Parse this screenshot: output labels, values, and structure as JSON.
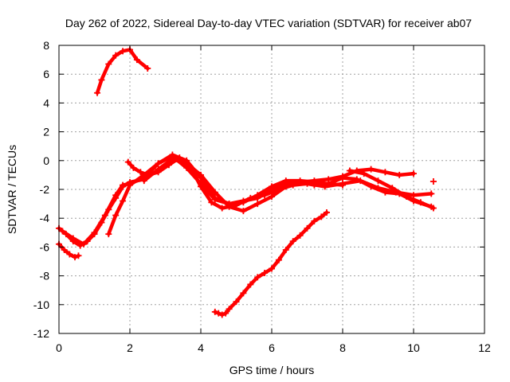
{
  "chart_data": {
    "type": "scatter",
    "title": "Day 262 of 2022, Sidereal Day-to-day VTEC variation (SDTVAR) for receiver ab07",
    "xlabel": "GPS time / hours",
    "ylabel": "SDTVAR / TECUs",
    "xlim": [
      0,
      12
    ],
    "ylim": [
      -12,
      8
    ],
    "xticks": [
      0,
      2,
      4,
      6,
      8,
      10,
      12
    ],
    "yticks": [
      -12,
      -10,
      -8,
      -6,
      -4,
      -2,
      0,
      2,
      4,
      6,
      8
    ],
    "grid": true,
    "marker": "plus",
    "color": "#ff0000",
    "series": [
      {
        "name": "arc-1",
        "x": [
          0.0,
          0.15,
          0.3,
          0.45,
          0.55
        ],
        "y": [
          -5.8,
          -6.2,
          -6.5,
          -6.7,
          -6.6
        ]
      },
      {
        "name": "arc-2",
        "x": [
          0.0,
          0.2,
          0.4,
          0.6,
          0.8,
          1.0,
          1.2,
          1.4,
          1.6,
          1.8,
          2.0,
          2.4
        ],
        "y": [
          -4.7,
          -5.1,
          -5.6,
          -5.9,
          -5.6,
          -5.1,
          -4.3,
          -3.4,
          -2.6,
          -1.8,
          -1.5,
          -1.3
        ]
      },
      {
        "name": "arc-3",
        "x": [
          0.1,
          0.4,
          0.7,
          1.0,
          1.3,
          1.6,
          1.8,
          2.0,
          2.4,
          2.8,
          3.2,
          3.6,
          4.0,
          4.4,
          4.8,
          5.2,
          5.6,
          6.0,
          6.4,
          6.8,
          7.2,
          7.6,
          8.0,
          8.4,
          8.8,
          9.2,
          9.6,
          10.0,
          10.5
        ],
        "y": [
          -4.9,
          -5.4,
          -5.8,
          -5.0,
          -3.8,
          -2.4,
          -1.7,
          -1.6,
          -1.2,
          -0.2,
          0.4,
          0.0,
          -1.2,
          -2.6,
          -3.0,
          -2.8,
          -2.6,
          -2.0,
          -1.6,
          -1.5,
          -1.7,
          -1.6,
          -1.2,
          -1.3,
          -1.8,
          -2.2,
          -2.3,
          -2.8,
          -3.2
        ]
      },
      {
        "name": "arc-4",
        "x": [
          1.08,
          1.2,
          1.4,
          1.6,
          1.8,
          2.0,
          2.2,
          2.5
        ],
        "y": [
          4.7,
          5.6,
          6.7,
          7.3,
          7.6,
          7.7,
          7.0,
          6.4
        ]
      },
      {
        "name": "arc-5",
        "x": [
          1.4,
          1.6,
          1.8,
          2.0,
          2.4,
          2.8,
          3.2,
          3.6,
          4.0,
          4.4,
          4.8,
          5.2,
          5.6,
          6.0,
          6.4,
          6.8,
          7.2,
          7.6,
          8.0
        ],
        "y": [
          -5.1,
          -3.8,
          -2.8,
          -1.7,
          -1.0,
          -0.2,
          0.3,
          -0.5,
          -1.6,
          -2.7,
          -3.0,
          -2.9,
          -2.4,
          -1.8,
          -1.4,
          -1.4,
          -1.5,
          -1.6,
          -1.7
        ]
      },
      {
        "name": "arc-6",
        "x": [
          1.95,
          2.1,
          2.3,
          2.5,
          2.8,
          3.1,
          3.4,
          3.7,
          4.0,
          4.3,
          4.6,
          5.0,
          5.4,
          5.8,
          6.2,
          6.6,
          7.0,
          7.5,
          8.0,
          8.5,
          9.0,
          9.5,
          10.0,
          10.5
        ],
        "y": [
          -0.1,
          -0.5,
          -0.8,
          -1.0,
          -0.8,
          -0.3,
          0.2,
          -0.4,
          -1.8,
          -2.9,
          -3.3,
          -3.1,
          -2.6,
          -2.4,
          -2.0,
          -1.7,
          -1.6,
          -1.8,
          -1.6,
          -1.4,
          -1.9,
          -2.2,
          -2.4,
          -2.3
        ]
      },
      {
        "name": "arc-7",
        "x": [
          2.4,
          2.8,
          3.2,
          3.6,
          4.0,
          4.4,
          4.8,
          5.2,
          5.6,
          6.0,
          6.4,
          6.8,
          7.2,
          7.6,
          8.0,
          8.4,
          8.8,
          9.2,
          9.6,
          10.0
        ],
        "y": [
          -1.4,
          -0.6,
          0.1,
          -0.2,
          -1.0,
          -2.2,
          -3.2,
          -3.5,
          -3.0,
          -2.5,
          -1.8,
          -1.5,
          -1.4,
          -1.3,
          -1.1,
          -0.7,
          -0.6,
          -0.8,
          -1.0,
          -0.9
        ]
      },
      {
        "name": "arc-8",
        "x": [
          8.2,
          8.6,
          9.0,
          9.4,
          9.8,
          10.2,
          10.56
        ],
        "y": [
          -0.7,
          -0.9,
          -1.4,
          -1.9,
          -2.5,
          -2.9,
          -3.3
        ]
      },
      {
        "name": "arc-9",
        "x": [
          10.56
        ],
        "y": [
          -1.45
        ]
      },
      {
        "name": "arc-10",
        "x": [
          4.4,
          4.5,
          4.6,
          4.7,
          4.8,
          5.0,
          5.2,
          5.4,
          5.6,
          5.8,
          6.0,
          6.2,
          6.4,
          6.6,
          6.8,
          7.0,
          7.2,
          7.4,
          7.55
        ],
        "y": [
          -10.5,
          -10.6,
          -10.7,
          -10.6,
          -10.3,
          -9.8,
          -9.2,
          -8.6,
          -8.1,
          -7.8,
          -7.5,
          -6.9,
          -6.2,
          -5.6,
          -5.2,
          -4.7,
          -4.2,
          -3.9,
          -3.6
        ]
      }
    ]
  }
}
